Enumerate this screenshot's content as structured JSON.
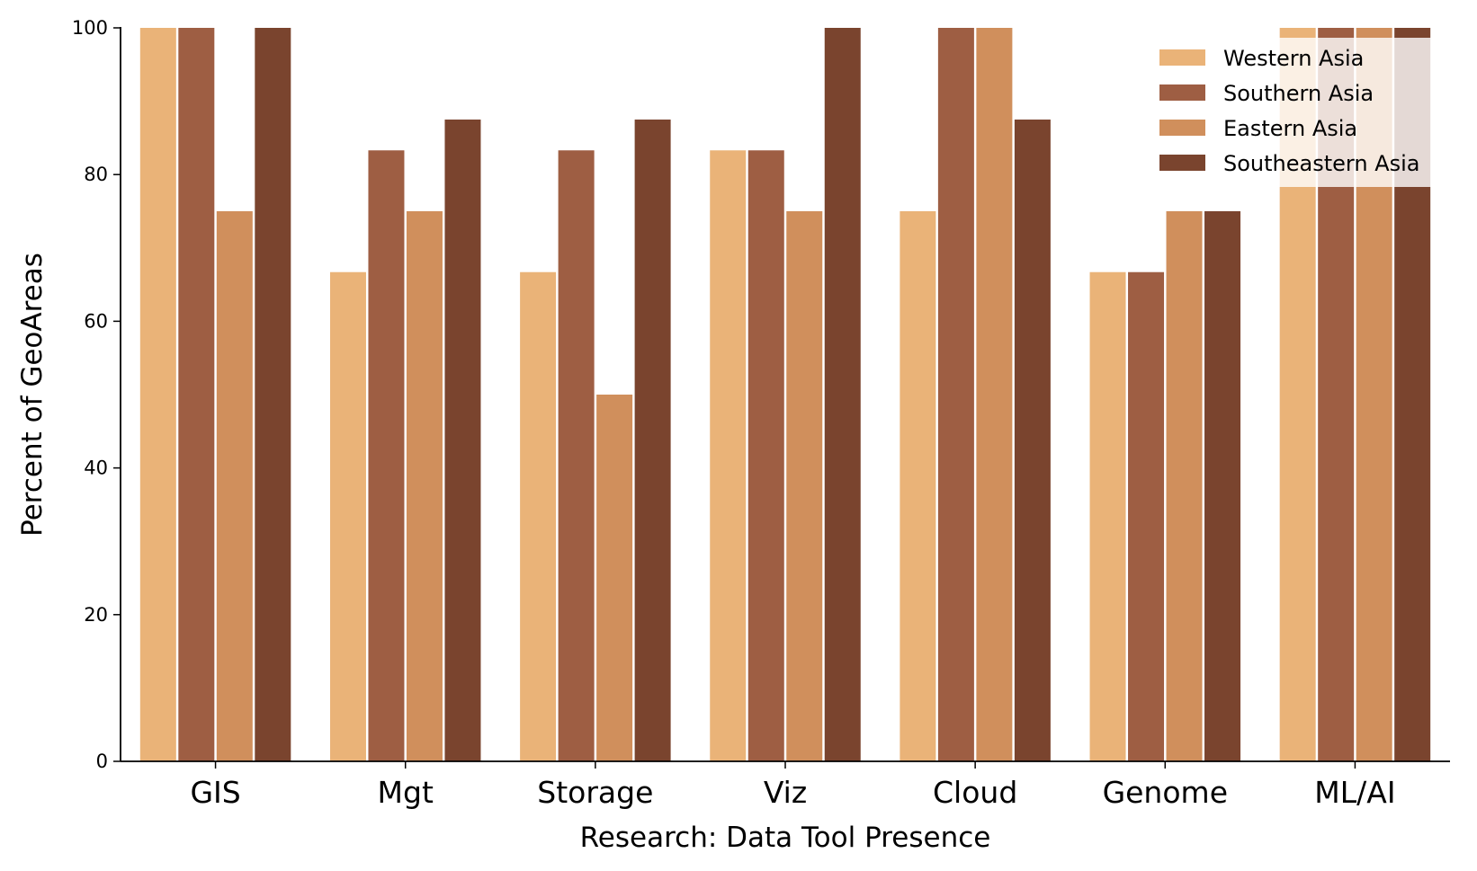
{
  "chart_data": {
    "type": "bar",
    "categories": [
      "GIS",
      "Mgt",
      "Storage",
      "Viz",
      "Cloud",
      "Genome",
      "ML/AI"
    ],
    "series": [
      {
        "name": "Western Asia",
        "color": "#EAB378",
        "values": [
          100,
          66.7,
          66.7,
          83.3,
          75,
          66.7,
          100
        ]
      },
      {
        "name": "Southern Asia",
        "color": "#9E5E43",
        "values": [
          100,
          83.3,
          83.3,
          83.3,
          100,
          66.7,
          100
        ]
      },
      {
        "name": "Eastern Asia",
        "color": "#D08F5C",
        "values": [
          75,
          75,
          50,
          75,
          100,
          75,
          100
        ]
      },
      {
        "name": "Southeastern Asia",
        "color": "#7A442E",
        "values": [
          100,
          87.5,
          87.5,
          100,
          87.5,
          75,
          100
        ]
      }
    ],
    "xlabel": "Research: Data Tool Presence",
    "ylabel": "Percent of GeoAreas",
    "ylim": [
      0,
      100
    ],
    "yticks": [
      "0",
      "20",
      "40",
      "60",
      "80",
      "100"
    ],
    "grid": false,
    "legend_position": "top-right"
  }
}
